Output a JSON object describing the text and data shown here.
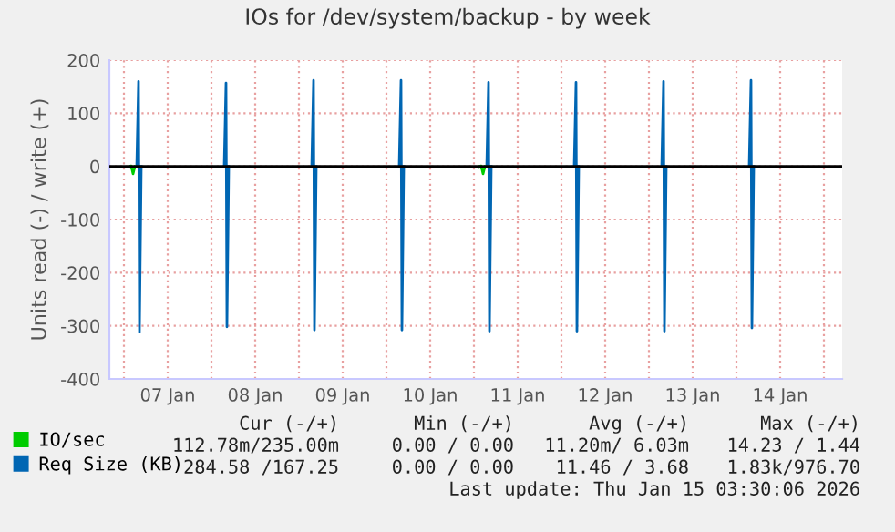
{
  "chart_data": {
    "type": "line",
    "title": "IOs for /dev/system/backup - by week",
    "ylabel": "Units read (-) / write (+)",
    "xlim": [
      "2026-01-06T20:00",
      "2026-01-15T05:00"
    ],
    "ylim": [
      -400,
      200
    ],
    "yticks": [
      -400,
      -300,
      -200,
      -100,
      0,
      100,
      200
    ],
    "xticks": [
      {
        "value": "2026-01-07",
        "label": null
      },
      {
        "value": "2026-01-07T12:00",
        "label": "07 Jan"
      },
      {
        "value": "2026-01-08",
        "label": null
      },
      {
        "value": "2026-01-08T12:00",
        "label": "08 Jan"
      },
      {
        "value": "2026-01-09",
        "label": null
      },
      {
        "value": "2026-01-09T12:00",
        "label": "09 Jan"
      },
      {
        "value": "2026-01-10",
        "label": null
      },
      {
        "value": "2026-01-10T12:00",
        "label": "10 Jan"
      },
      {
        "value": "2026-01-11",
        "label": null
      },
      {
        "value": "2026-01-11T12:00",
        "label": "11 Jan"
      },
      {
        "value": "2026-01-12",
        "label": null
      },
      {
        "value": "2026-01-12T12:00",
        "label": "12 Jan"
      },
      {
        "value": "2026-01-13",
        "label": null
      },
      {
        "value": "2026-01-13T12:00",
        "label": "13 Jan"
      },
      {
        "value": "2026-01-14",
        "label": null
      },
      {
        "value": "2026-01-14T12:00",
        "label": "14 Jan"
      },
      {
        "value": "2026-01-15",
        "label": null
      }
    ],
    "grid": true,
    "legend": "bottom left",
    "marker": "none",
    "line_style": "solid",
    "ref_lines": [
      {
        "axis": "y",
        "value": 0,
        "color": "#000000"
      }
    ],
    "series": [
      {
        "name": "IO/sec",
        "color": "#00cc00",
        "x": [
          "2026-01-07T01:30",
          "2026-01-07T02:00",
          "2026-01-07T02:30",
          "2026-01-07T03:00",
          "2026-01-07T03:10",
          "2026-01-11T01:30",
          "2026-01-11T02:00",
          "2026-01-11T02:30",
          "2026-01-11T03:00"
        ],
        "values": [
          0,
          1,
          -14,
          0,
          null,
          0,
          1,
          -14,
          0
        ]
      },
      {
        "name": "Req Size (KB)",
        "color": "#0066b3",
        "x": [
          "2026-01-07T03:30",
          "2026-01-07T04:00",
          "2026-01-07T04:15",
          "2026-01-07T04:45",
          "2026-01-07T05:00",
          "2026-01-08T03:30",
          "2026-01-08T04:00",
          "2026-01-08T04:15",
          "2026-01-08T04:45",
          "2026-01-08T05:00",
          "2026-01-09T03:30",
          "2026-01-09T04:00",
          "2026-01-09T04:15",
          "2026-01-09T04:45",
          "2026-01-09T05:00",
          "2026-01-10T03:30",
          "2026-01-10T04:00",
          "2026-01-10T04:15",
          "2026-01-10T04:45",
          "2026-01-10T05:00",
          "2026-01-11T03:30",
          "2026-01-11T04:00",
          "2026-01-11T04:15",
          "2026-01-11T04:45",
          "2026-01-11T05:00",
          "2026-01-12T03:30",
          "2026-01-12T04:00",
          "2026-01-12T04:15",
          "2026-01-12T04:45",
          "2026-01-12T05:00",
          "2026-01-13T03:30",
          "2026-01-13T04:00",
          "2026-01-13T04:15",
          "2026-01-13T04:45",
          "2026-01-13T05:00",
          "2026-01-14T03:30",
          "2026-01-14T04:00",
          "2026-01-14T04:15",
          "2026-01-14T04:45"
        ],
        "values": [
          0,
          160,
          -312,
          0,
          null,
          0,
          157,
          -302,
          0,
          null,
          0,
          162,
          -308,
          0,
          null,
          0,
          162,
          -308,
          0,
          null,
          0,
          158,
          -310,
          0,
          null,
          0,
          158,
          -310,
          0,
          null,
          0,
          160,
          -310,
          0,
          null,
          0,
          162,
          -304,
          0
        ]
      }
    ],
    "annotations": [
      "Cur (-/+)",
      "Min (-/+)",
      "Avg (-/+)",
      "Max (-/+)",
      "112.78m/235.00m",
      "0.00 / 0.00",
      "11.20m/ 6.03m",
      "14.23 / 1.44",
      "284.58 /167.25",
      "0.00 / 0.00",
      "11.46 / 3.68",
      "1.83k/976.70",
      "Last update: Thu Jan 15 03:30:06 2026"
    ]
  }
}
